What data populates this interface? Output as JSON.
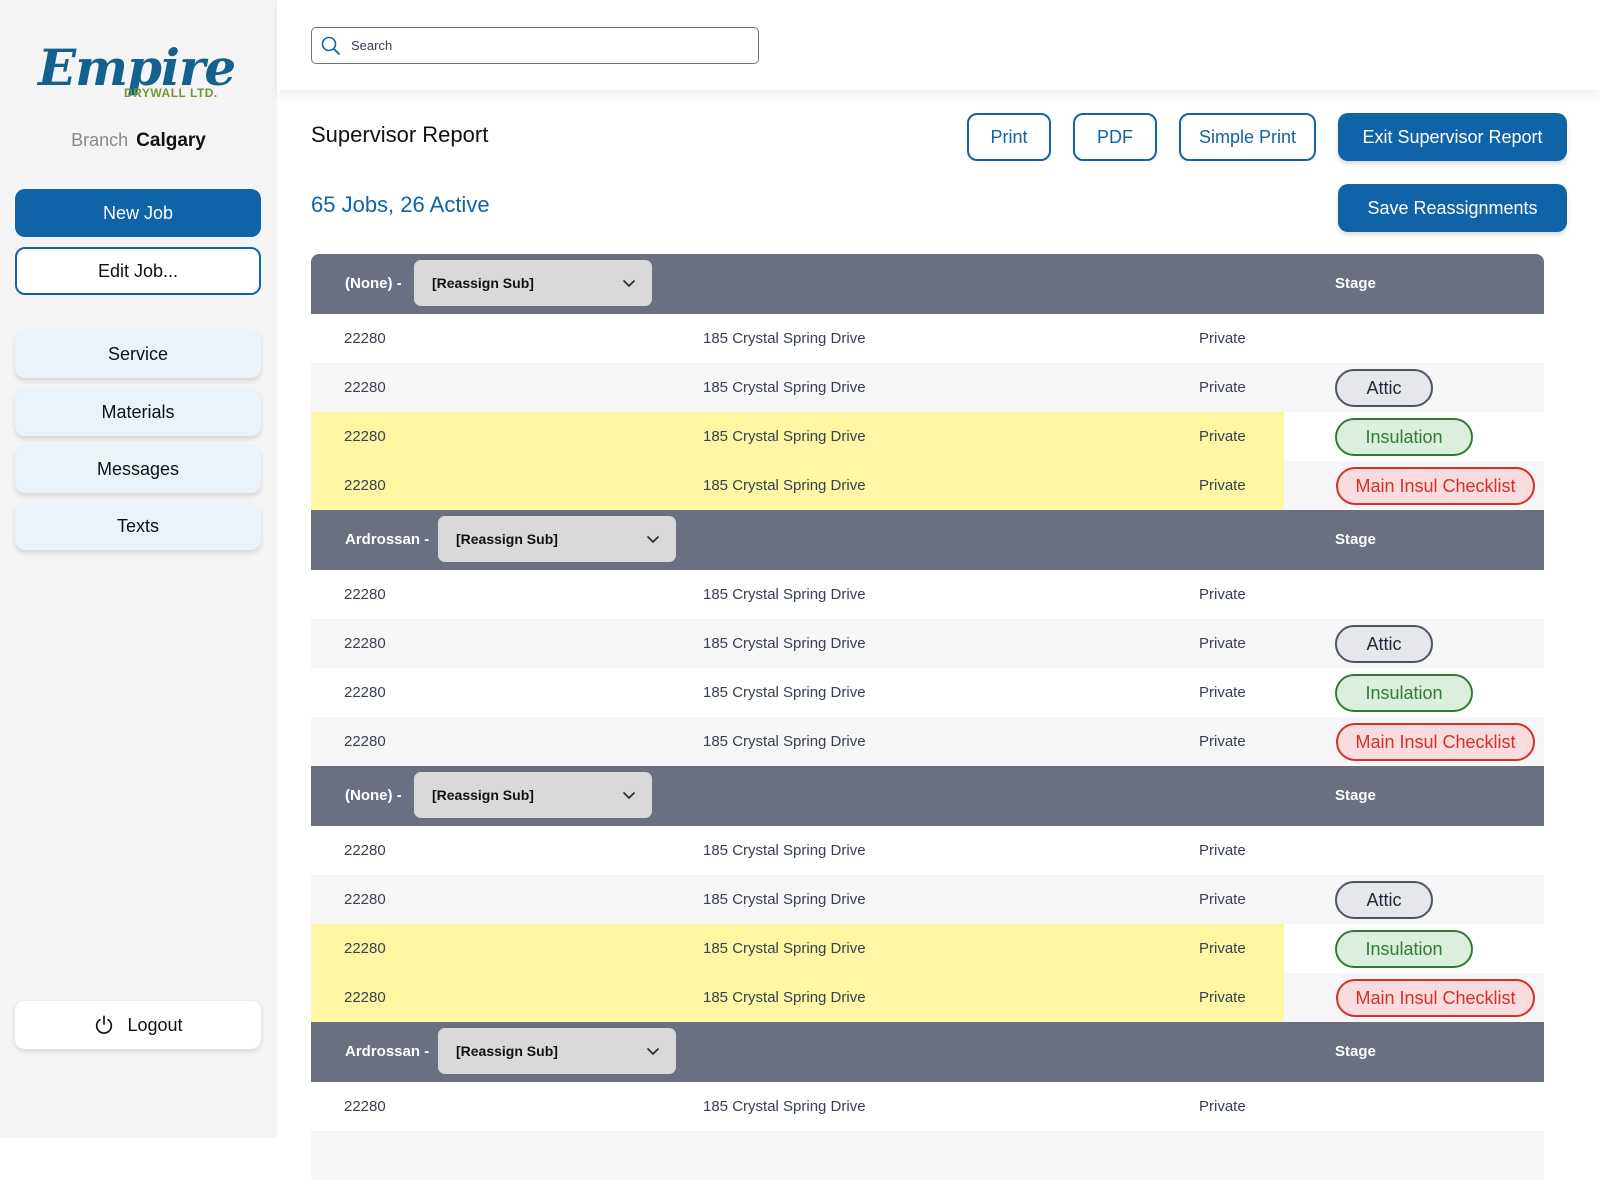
{
  "sidebar": {
    "logo": {
      "word": "Empire",
      "sub": "DRYWALL LTD."
    },
    "branch_label": "Branch",
    "branch_value": "Calgary",
    "new_job": "New Job",
    "edit_job": "Edit Job...",
    "nav": [
      "Service",
      "Materials",
      "Messages",
      "Texts"
    ],
    "logout": "Logout"
  },
  "search": {
    "placeholder": "Search"
  },
  "header": {
    "title": "Supervisor Report",
    "summary": "65 Jobs, 26 Active",
    "print": "Print",
    "pdf": "PDF",
    "simple_print": "Simple Print",
    "exit": "Exit Supervisor Report",
    "save": "Save Reassignments"
  },
  "colors": {
    "primary": "#0f63a6",
    "group_header": "#6b7080",
    "highlight": "#fdf7a3",
    "attic": "#4b5563",
    "insulation": "#2e7d32",
    "checklist": "#d32f2f"
  },
  "groups": [
    {
      "name": "(None) -",
      "reassign": "[Reassign Sub]",
      "stage_label": "Stage",
      "rows": [
        {
          "id": "22280",
          "address": "185 Crystal Spring Drive",
          "type": "Private",
          "stage": ""
        },
        {
          "id": "22280",
          "address": "185 Crystal Spring Drive",
          "type": "Private",
          "stage": "Attic"
        },
        {
          "id": "22280",
          "address": "185 Crystal Spring Drive",
          "type": "Private",
          "stage": "Insulation"
        },
        {
          "id": "22280",
          "address": "185 Crystal Spring Drive",
          "type": "Private",
          "stage": "Main Insul Checklist"
        }
      ]
    },
    {
      "name": "Ardrossan -",
      "reassign": "[Reassign Sub]",
      "stage_label": "Stage",
      "rows": [
        {
          "id": "22280",
          "address": "185 Crystal Spring Drive",
          "type": "Private",
          "stage": ""
        },
        {
          "id": "22280",
          "address": "185 Crystal Spring Drive",
          "type": "Private",
          "stage": "Attic"
        },
        {
          "id": "22280",
          "address": "185 Crystal Spring Drive",
          "type": "Private",
          "stage": "Insulation"
        },
        {
          "id": "22280",
          "address": "185 Crystal Spring Drive",
          "type": "Private",
          "stage": "Main Insul Checklist"
        }
      ]
    },
    {
      "name": "(None) -",
      "reassign": "[Reassign Sub]",
      "stage_label": "Stage",
      "rows": [
        {
          "id": "22280",
          "address": "185 Crystal Spring Drive",
          "type": "Private",
          "stage": ""
        },
        {
          "id": "22280",
          "address": "185 Crystal Spring Drive",
          "type": "Private",
          "stage": "Attic"
        },
        {
          "id": "22280",
          "address": "185 Crystal Spring Drive",
          "type": "Private",
          "stage": "Insulation"
        },
        {
          "id": "22280",
          "address": "185 Crystal Spring Drive",
          "type": "Private",
          "stage": "Main Insul Checklist"
        }
      ]
    },
    {
      "name": "Ardrossan -",
      "reassign": "[Reassign Sub]",
      "stage_label": "Stage",
      "rows": [
        {
          "id": "22280",
          "address": "185 Crystal Spring Drive",
          "type": "Private",
          "stage": ""
        }
      ]
    }
  ]
}
